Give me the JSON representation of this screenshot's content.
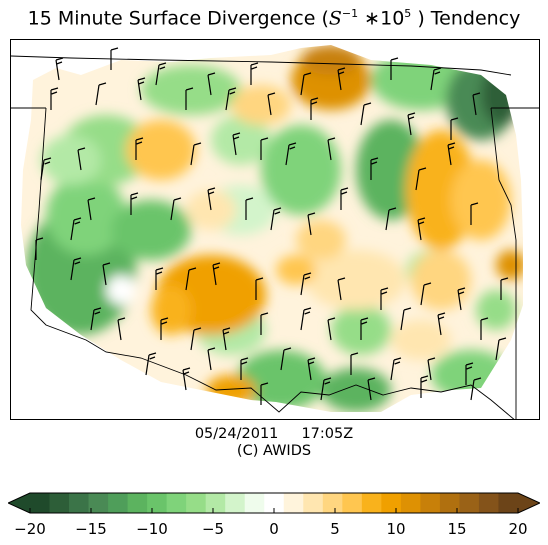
{
  "title": {
    "prefix": "15 Minute Surface Divergence (",
    "math_base": "S",
    "math_exp": "−1",
    "math_mult": " ∗10",
    "math_exp2": "5",
    "suffix": " ) Tendency"
  },
  "caption": {
    "datetime": "05/24/2011     17:05Z",
    "credit": "(C) AWIDS"
  },
  "colorbar": {
    "min": -20,
    "max": 20,
    "extend": "both",
    "tick_labels": [
      "−20",
      "−15",
      "−10",
      "−5",
      "0",
      "5",
      "10",
      "15",
      "20"
    ],
    "tick_values": [
      -20,
      -15,
      -10,
      -5,
      0,
      5,
      10,
      15,
      20
    ],
    "colors_negative": [
      "#1f4a2b",
      "#2d5e38",
      "#3b7448",
      "#4a8a55",
      "#4f9e5a",
      "#5cb35f",
      "#6ac46a",
      "#7fd37a",
      "#96dd88",
      "#b3e9a6",
      "#d3f4cb",
      "#effcec"
    ],
    "color_zero": "#ffffff",
    "colors_positive": [
      "#fff4dc",
      "#ffe6b0",
      "#ffd680",
      "#ffc650",
      "#f9b21c",
      "#f0a000",
      "#de9103",
      "#c88009",
      "#b0700f",
      "#9a6217",
      "#84531a",
      "#6c4418"
    ]
  },
  "map": {
    "field_name": "divergence tendency",
    "colormap_summary": "green = negative (convergence), orange/brown = positive (divergence)",
    "barb_icon": "wind-barb-icon",
    "boundary_icon": "state-border-icon"
  }
}
